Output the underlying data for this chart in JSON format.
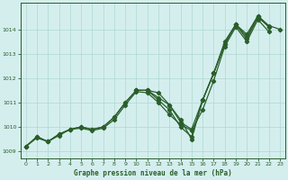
{
  "title": "Graphe pression niveau de la mer (hPa)",
  "xlim": [
    -0.5,
    23.5
  ],
  "ylim": [
    1008.7,
    1015.1
  ],
  "yticks": [
    1009,
    1010,
    1011,
    1012,
    1013,
    1014
  ],
  "xticks": [
    0,
    1,
    2,
    3,
    4,
    5,
    6,
    7,
    8,
    9,
    10,
    11,
    12,
    13,
    14,
    15,
    16,
    17,
    18,
    19,
    20,
    21,
    22,
    23
  ],
  "bg_color": "#d4eeee",
  "grid_color": "#b0d8d0",
  "line_color": "#2a5e2a",
  "line1": {
    "x": [
      0,
      1,
      2,
      3,
      4,
      5,
      6,
      7,
      8,
      9,
      10,
      11,
      12,
      13,
      14,
      15,
      16,
      17,
      18,
      19,
      20,
      21,
      22
    ],
    "y": [
      1009.2,
      1009.6,
      1009.4,
      1009.7,
      1009.9,
      1010.0,
      1009.9,
      1010.0,
      1010.4,
      1011.0,
      1011.5,
      1011.5,
      1011.2,
      1010.9,
      1010.2,
      1009.9,
      1011.1,
      1012.2,
      1013.4,
      1014.2,
      1013.6,
      1014.5,
      1014.1
    ]
  },
  "line2": {
    "x": [
      0,
      1,
      2,
      3,
      4,
      5,
      6,
      7,
      8,
      9,
      10,
      11,
      12,
      13,
      14,
      15,
      16,
      17,
      18,
      19,
      20,
      21,
      22
    ],
    "y": [
      1009.2,
      1009.6,
      1009.4,
      1009.7,
      1009.9,
      1010.0,
      1009.9,
      1010.0,
      1010.4,
      1011.0,
      1011.5,
      1011.5,
      1011.1,
      1010.7,
      1010.0,
      1009.6,
      1011.1,
      1012.2,
      1013.4,
      1014.2,
      1013.7,
      1014.55,
      1014.1
    ]
  },
  "line3": {
    "x": [
      0,
      1,
      2,
      3,
      4,
      5,
      6,
      7,
      8,
      9,
      10,
      11,
      12,
      13,
      14,
      15,
      16,
      17,
      18,
      19,
      20,
      21,
      22
    ],
    "y": [
      1009.2,
      1009.55,
      1009.4,
      1009.65,
      1009.9,
      1009.95,
      1009.85,
      1009.95,
      1010.3,
      1010.9,
      1011.45,
      1011.4,
      1011.0,
      1010.5,
      1010.1,
      1009.85,
      1010.7,
      1011.9,
      1013.3,
      1014.1,
      1013.5,
      1014.4,
      1013.9
    ]
  },
  "line4": {
    "x": [
      10,
      11,
      12,
      13,
      14,
      15,
      16,
      17,
      18,
      19,
      20,
      21,
      22,
      23
    ],
    "y": [
      1011.5,
      1011.5,
      1011.4,
      1010.9,
      1010.3,
      1009.5,
      1011.1,
      1012.2,
      1013.5,
      1014.2,
      1013.8,
      1014.55,
      1014.15,
      1014.0
    ]
  }
}
